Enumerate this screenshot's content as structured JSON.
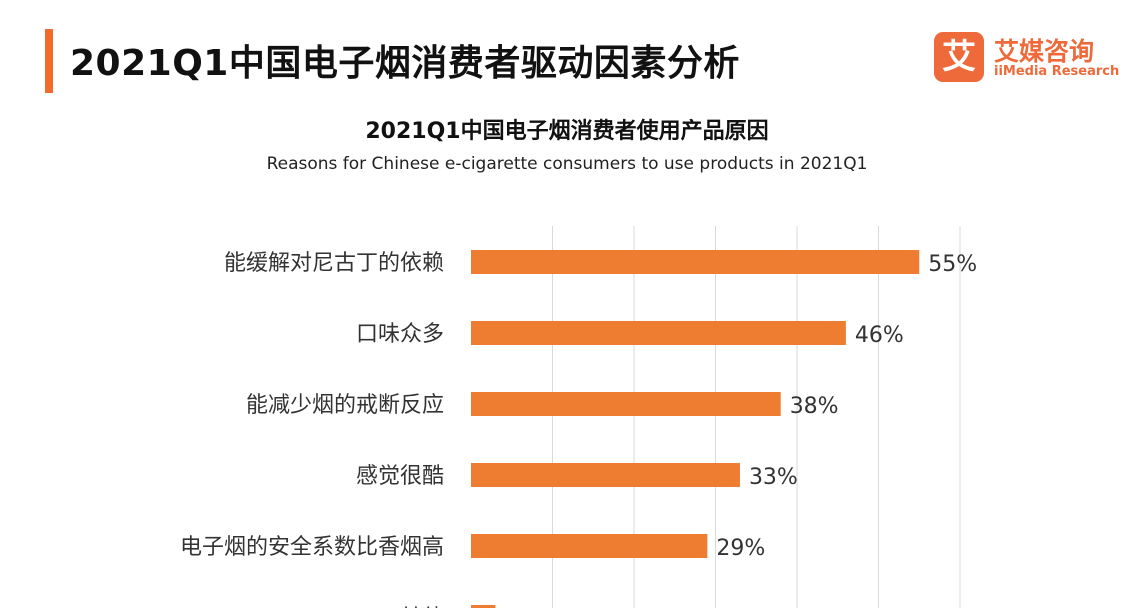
{
  "header": {
    "title": "2021Q1中国电子烟消费者驱动因素分析",
    "accent_color": "#f26b2b"
  },
  "logo": {
    "mark": "艾",
    "name_cn": "艾媒咨询",
    "name_en": "iiMedia Research",
    "color": "#ee6a3a"
  },
  "chart_data": {
    "type": "bar",
    "orientation": "horizontal",
    "title": "2021Q1中国电子烟消费者使用产品原因",
    "subtitle": "Reasons for Chinese e-cigarette consumers to use products in 2021Q1",
    "categories": [
      "能缓解对尼古丁的依赖",
      "口味众多",
      "能减少烟的戒断反应",
      "感觉很酷",
      "电子烟的安全系数比香烟高",
      "其他"
    ],
    "values": [
      55,
      46,
      38,
      33,
      29,
      3
    ],
    "value_labels": [
      "55%",
      "46%",
      "38%",
      "33%",
      "29%",
      ""
    ],
    "xlim": [
      0,
      60
    ],
    "grid": true,
    "bar_color": "#ee7d31"
  }
}
